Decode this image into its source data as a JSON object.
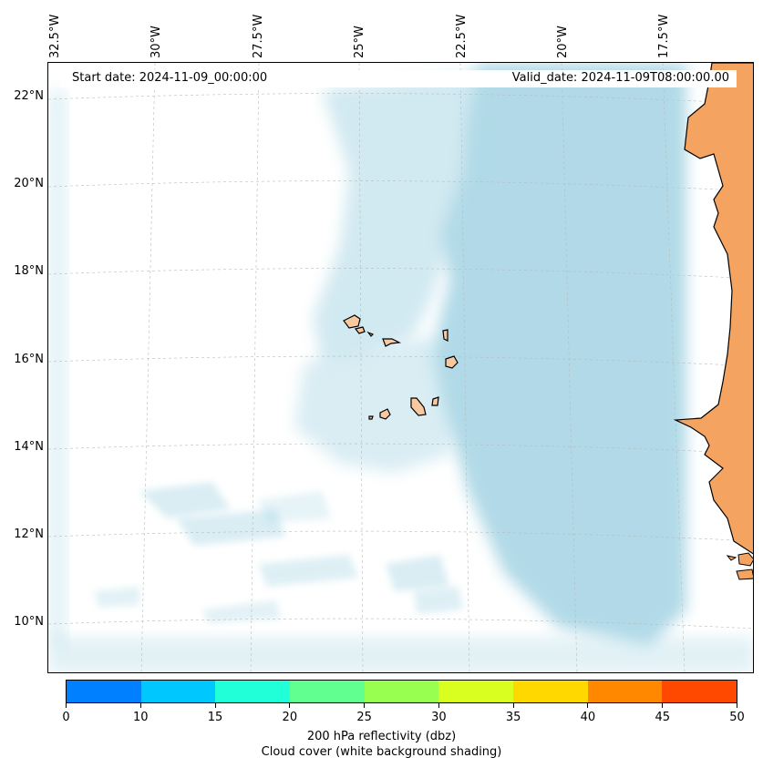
{
  "map": {
    "start_date": "Start date: 2024-11-09_00:00:00",
    "valid_date": "Valid_date: 2024-11-09T08:00:00.00",
    "lon_labels": [
      "32.5°W",
      "30°W",
      "27.5°W",
      "25°W",
      "22.5°W",
      "20°W",
      "17.5°W"
    ],
    "lat_labels": [
      "22°N",
      "20°N",
      "18°N",
      "16°N",
      "14°N",
      "12°N",
      "10°N"
    ],
    "land_color": "#f4a460",
    "island_color": "#f8c8a0",
    "cloud_color": "#add8e6"
  },
  "colorbar": {
    "ticks": [
      "0",
      "10",
      "15",
      "20",
      "25",
      "30",
      "35",
      "40",
      "45",
      "50"
    ],
    "colors": [
      "#0080ff",
      "#00c8ff",
      "#20ffd8",
      "#60ff90",
      "#98ff50",
      "#d8ff20",
      "#ffd800",
      "#ff8800",
      "#ff4800"
    ],
    "label": "200 hPa reflectivity (dbz)",
    "sublabel": "Cloud cover (white background shading)"
  }
}
